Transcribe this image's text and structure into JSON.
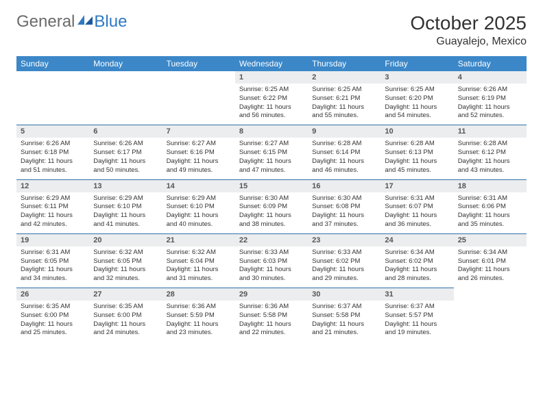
{
  "logo": {
    "general": "General",
    "blue": "Blue"
  },
  "header": {
    "month": "October 2025",
    "location": "Guayalejo, Mexico"
  },
  "colors": {
    "header_bg": "#3b87c8",
    "header_text": "#ffffff",
    "daynum_bg": "#ecedef",
    "row_border": "#2f6fa8",
    "logo_accent": "#2f78c2",
    "text": "#333333"
  },
  "weekdays": [
    "Sunday",
    "Monday",
    "Tuesday",
    "Wednesday",
    "Thursday",
    "Friday",
    "Saturday"
  ],
  "rows": [
    [
      {
        "day": "",
        "sunrise": "",
        "sunset": "",
        "daylight": ""
      },
      {
        "day": "",
        "sunrise": "",
        "sunset": "",
        "daylight": ""
      },
      {
        "day": "",
        "sunrise": "",
        "sunset": "",
        "daylight": ""
      },
      {
        "day": "1",
        "sunrise": "Sunrise: 6:25 AM",
        "sunset": "Sunset: 6:22 PM",
        "daylight": "Daylight: 11 hours and 56 minutes."
      },
      {
        "day": "2",
        "sunrise": "Sunrise: 6:25 AM",
        "sunset": "Sunset: 6:21 PM",
        "daylight": "Daylight: 11 hours and 55 minutes."
      },
      {
        "day": "3",
        "sunrise": "Sunrise: 6:25 AM",
        "sunset": "Sunset: 6:20 PM",
        "daylight": "Daylight: 11 hours and 54 minutes."
      },
      {
        "day": "4",
        "sunrise": "Sunrise: 6:26 AM",
        "sunset": "Sunset: 6:19 PM",
        "daylight": "Daylight: 11 hours and 52 minutes."
      }
    ],
    [
      {
        "day": "5",
        "sunrise": "Sunrise: 6:26 AM",
        "sunset": "Sunset: 6:18 PM",
        "daylight": "Daylight: 11 hours and 51 minutes."
      },
      {
        "day": "6",
        "sunrise": "Sunrise: 6:26 AM",
        "sunset": "Sunset: 6:17 PM",
        "daylight": "Daylight: 11 hours and 50 minutes."
      },
      {
        "day": "7",
        "sunrise": "Sunrise: 6:27 AM",
        "sunset": "Sunset: 6:16 PM",
        "daylight": "Daylight: 11 hours and 49 minutes."
      },
      {
        "day": "8",
        "sunrise": "Sunrise: 6:27 AM",
        "sunset": "Sunset: 6:15 PM",
        "daylight": "Daylight: 11 hours and 47 minutes."
      },
      {
        "day": "9",
        "sunrise": "Sunrise: 6:28 AM",
        "sunset": "Sunset: 6:14 PM",
        "daylight": "Daylight: 11 hours and 46 minutes."
      },
      {
        "day": "10",
        "sunrise": "Sunrise: 6:28 AM",
        "sunset": "Sunset: 6:13 PM",
        "daylight": "Daylight: 11 hours and 45 minutes."
      },
      {
        "day": "11",
        "sunrise": "Sunrise: 6:28 AM",
        "sunset": "Sunset: 6:12 PM",
        "daylight": "Daylight: 11 hours and 43 minutes."
      }
    ],
    [
      {
        "day": "12",
        "sunrise": "Sunrise: 6:29 AM",
        "sunset": "Sunset: 6:11 PM",
        "daylight": "Daylight: 11 hours and 42 minutes."
      },
      {
        "day": "13",
        "sunrise": "Sunrise: 6:29 AM",
        "sunset": "Sunset: 6:10 PM",
        "daylight": "Daylight: 11 hours and 41 minutes."
      },
      {
        "day": "14",
        "sunrise": "Sunrise: 6:29 AM",
        "sunset": "Sunset: 6:10 PM",
        "daylight": "Daylight: 11 hours and 40 minutes."
      },
      {
        "day": "15",
        "sunrise": "Sunrise: 6:30 AM",
        "sunset": "Sunset: 6:09 PM",
        "daylight": "Daylight: 11 hours and 38 minutes."
      },
      {
        "day": "16",
        "sunrise": "Sunrise: 6:30 AM",
        "sunset": "Sunset: 6:08 PM",
        "daylight": "Daylight: 11 hours and 37 minutes."
      },
      {
        "day": "17",
        "sunrise": "Sunrise: 6:31 AM",
        "sunset": "Sunset: 6:07 PM",
        "daylight": "Daylight: 11 hours and 36 minutes."
      },
      {
        "day": "18",
        "sunrise": "Sunrise: 6:31 AM",
        "sunset": "Sunset: 6:06 PM",
        "daylight": "Daylight: 11 hours and 35 minutes."
      }
    ],
    [
      {
        "day": "19",
        "sunrise": "Sunrise: 6:31 AM",
        "sunset": "Sunset: 6:05 PM",
        "daylight": "Daylight: 11 hours and 34 minutes."
      },
      {
        "day": "20",
        "sunrise": "Sunrise: 6:32 AM",
        "sunset": "Sunset: 6:05 PM",
        "daylight": "Daylight: 11 hours and 32 minutes."
      },
      {
        "day": "21",
        "sunrise": "Sunrise: 6:32 AM",
        "sunset": "Sunset: 6:04 PM",
        "daylight": "Daylight: 11 hours and 31 minutes."
      },
      {
        "day": "22",
        "sunrise": "Sunrise: 6:33 AM",
        "sunset": "Sunset: 6:03 PM",
        "daylight": "Daylight: 11 hours and 30 minutes."
      },
      {
        "day": "23",
        "sunrise": "Sunrise: 6:33 AM",
        "sunset": "Sunset: 6:02 PM",
        "daylight": "Daylight: 11 hours and 29 minutes."
      },
      {
        "day": "24",
        "sunrise": "Sunrise: 6:34 AM",
        "sunset": "Sunset: 6:02 PM",
        "daylight": "Daylight: 11 hours and 28 minutes."
      },
      {
        "day": "25",
        "sunrise": "Sunrise: 6:34 AM",
        "sunset": "Sunset: 6:01 PM",
        "daylight": "Daylight: 11 hours and 26 minutes."
      }
    ],
    [
      {
        "day": "26",
        "sunrise": "Sunrise: 6:35 AM",
        "sunset": "Sunset: 6:00 PM",
        "daylight": "Daylight: 11 hours and 25 minutes."
      },
      {
        "day": "27",
        "sunrise": "Sunrise: 6:35 AM",
        "sunset": "Sunset: 6:00 PM",
        "daylight": "Daylight: 11 hours and 24 minutes."
      },
      {
        "day": "28",
        "sunrise": "Sunrise: 6:36 AM",
        "sunset": "Sunset: 5:59 PM",
        "daylight": "Daylight: 11 hours and 23 minutes."
      },
      {
        "day": "29",
        "sunrise": "Sunrise: 6:36 AM",
        "sunset": "Sunset: 5:58 PM",
        "daylight": "Daylight: 11 hours and 22 minutes."
      },
      {
        "day": "30",
        "sunrise": "Sunrise: 6:37 AM",
        "sunset": "Sunset: 5:58 PM",
        "daylight": "Daylight: 11 hours and 21 minutes."
      },
      {
        "day": "31",
        "sunrise": "Sunrise: 6:37 AM",
        "sunset": "Sunset: 5:57 PM",
        "daylight": "Daylight: 11 hours and 19 minutes."
      },
      {
        "day": "",
        "sunrise": "",
        "sunset": "",
        "daylight": ""
      }
    ]
  ]
}
